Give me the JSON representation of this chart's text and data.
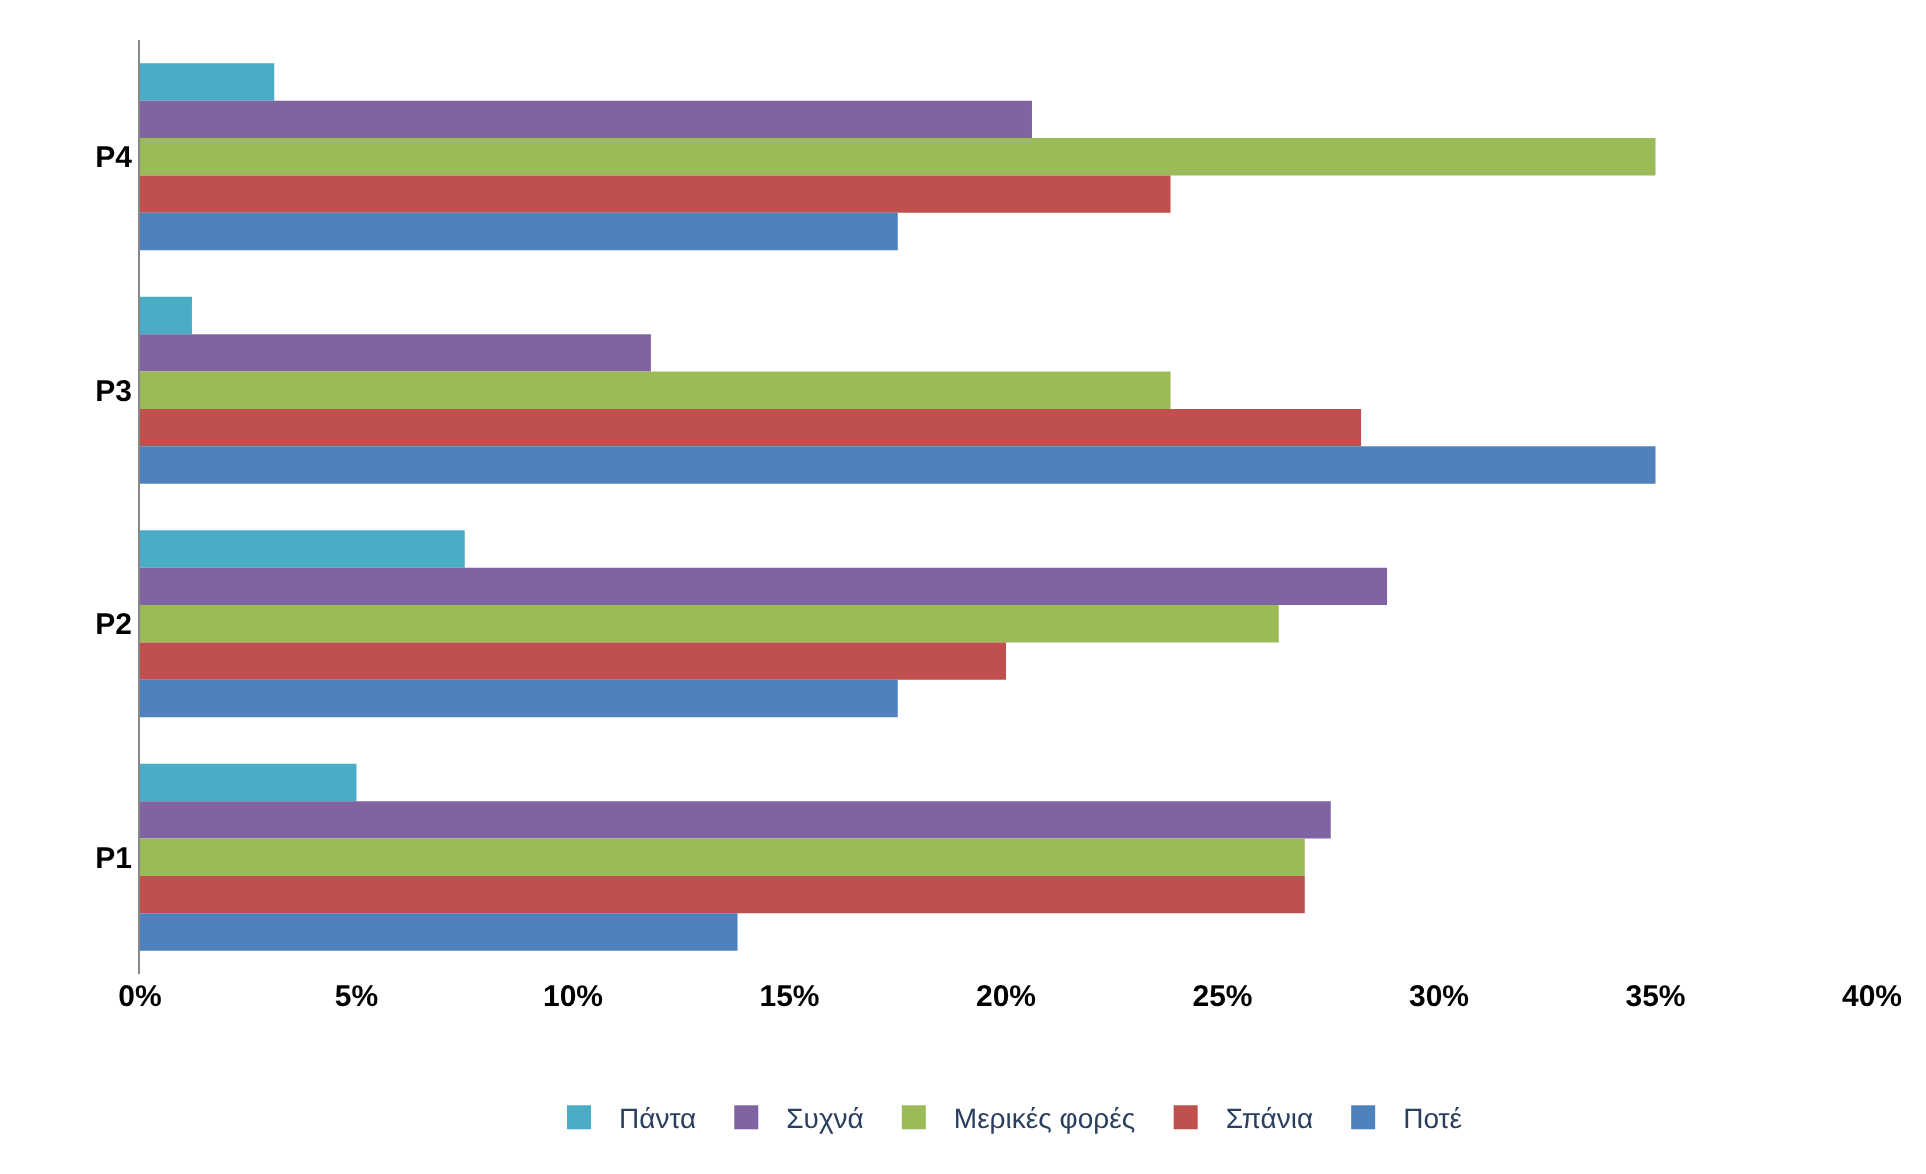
{
  "chart_data": {
    "type": "bar",
    "orientation": "horizontal",
    "categories": [
      "P4",
      "P3",
      "P2",
      "P1"
    ],
    "series": [
      {
        "name": "Πάντα",
        "color": "#4bacc6",
        "values": [
          3.1,
          1.2,
          7.5,
          5.0
        ]
      },
      {
        "name": "Συχνά",
        "color": "#8064a2",
        "values": [
          20.6,
          11.8,
          28.8,
          27.5
        ]
      },
      {
        "name": "Μερικές φορές",
        "color": "#9bbb59",
        "values": [
          35.0,
          23.8,
          26.3,
          26.9
        ]
      },
      {
        "name": "Σπάνια",
        "color": "#c0504d",
        "values": [
          23.8,
          28.2,
          20.0,
          26.9
        ]
      },
      {
        "name": "Ποτέ",
        "color": "#4f81bd",
        "values": [
          17.5,
          35.0,
          17.5,
          13.8
        ]
      }
    ],
    "xlim": [
      0,
      40
    ],
    "xticks": [
      {
        "value": 0,
        "label": "0%"
      },
      {
        "value": 5,
        "label": "5%"
      },
      {
        "value": 10,
        "label": "10%"
      },
      {
        "value": 15,
        "label": "15%"
      },
      {
        "value": 20,
        "label": "20%"
      },
      {
        "value": 25,
        "label": "25%"
      },
      {
        "value": 30,
        "label": "30%"
      },
      {
        "value": 35,
        "label": "35%"
      },
      {
        "value": 40,
        "label": "40%"
      }
    ],
    "legend": "bottom"
  }
}
